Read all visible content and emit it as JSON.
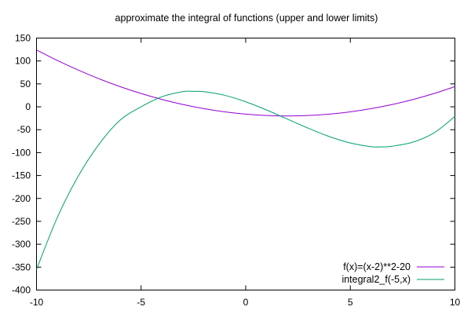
{
  "chart_data": {
    "type": "line",
    "title": "approximate the integral of functions (upper and lower limits)",
    "xlabel": "",
    "ylabel": "",
    "xlim": [
      -10,
      10
    ],
    "ylim": [
      -400,
      150
    ],
    "x_ticks": [
      "-10",
      "-5",
      "0",
      "5",
      "10"
    ],
    "y_ticks": [
      "150",
      "100",
      "50",
      "0",
      "-50",
      "-100",
      "-150",
      "-200",
      "-250",
      "-300",
      "-350",
      "-400"
    ],
    "grid": false,
    "legend_position": "bottom-right",
    "series": [
      {
        "name": "f(x)=(x-2)**2-20",
        "color": "#9400d3",
        "x": [
          -10,
          -9,
          -8,
          -7,
          -6,
          -5,
          -4,
          -3,
          -2,
          -1,
          0,
          1,
          2,
          3,
          4,
          5,
          6,
          7,
          8,
          9,
          10
        ],
        "y": [
          124,
          101,
          80,
          61,
          44,
          29,
          16,
          5,
          -4,
          -11,
          -16,
          -19,
          -20,
          -19,
          -16,
          -11,
          -4,
          5,
          16,
          29,
          44
        ]
      },
      {
        "name": "integral2_f(-5,x)",
        "color": "#009e73",
        "x": [
          -10,
          -9,
          -8,
          -7,
          -6,
          -5,
          -4,
          -3,
          -2.5,
          -2,
          -1,
          0,
          1,
          2,
          3,
          4,
          5,
          6,
          6.5,
          7,
          8,
          9,
          10
        ],
        "y": [
          -355,
          -241,
          -151,
          -81,
          -29,
          0,
          22,
          33,
          33.75,
          33,
          25,
          11,
          -7,
          -27,
          -47,
          -65,
          -79,
          -87,
          -87.5,
          -86,
          -77,
          -57,
          -21
        ]
      }
    ]
  }
}
